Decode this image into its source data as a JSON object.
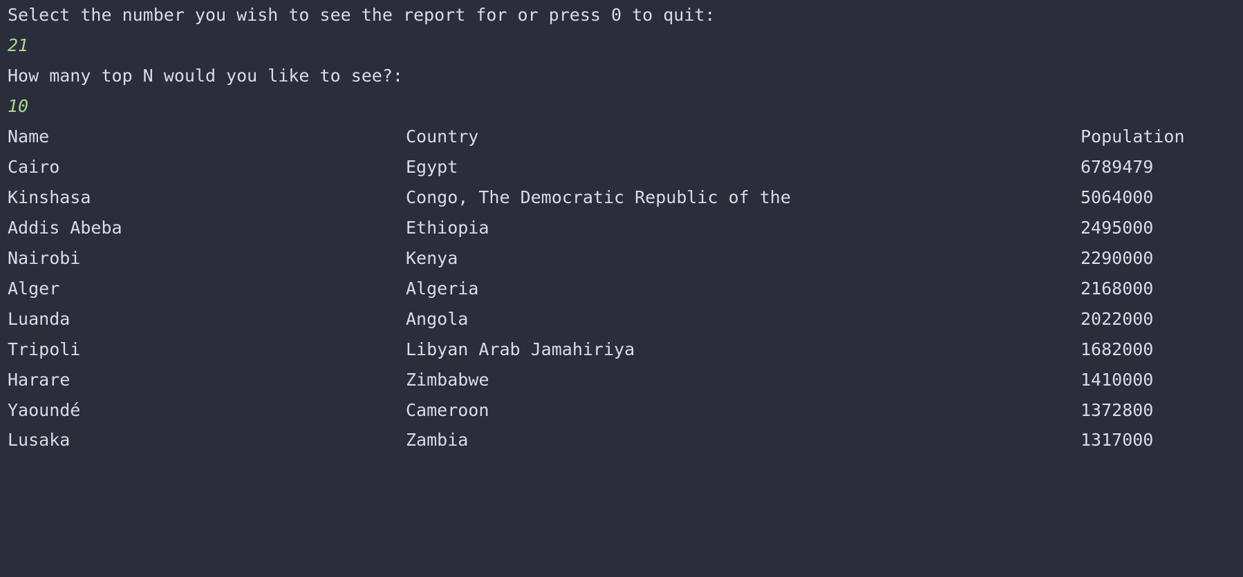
{
  "prompt1": "Select the number you wish to see the report for or press 0 to quit:",
  "answer1": "21",
  "prompt2": "How many top N would you like to see?:",
  "answer2": "10",
  "table": {
    "headers": {
      "name": "Name",
      "country": "Country",
      "population": "Population"
    },
    "rows": [
      {
        "name": "Cairo",
        "country": "Egypt",
        "population": "6789479"
      },
      {
        "name": "Kinshasa",
        "country": "Congo, The Democratic Republic of the",
        "population": "5064000"
      },
      {
        "name": "Addis Abeba",
        "country": "Ethiopia",
        "population": "2495000"
      },
      {
        "name": "Nairobi",
        "country": "Kenya",
        "population": "2290000"
      },
      {
        "name": "Alger",
        "country": "Algeria",
        "population": "2168000"
      },
      {
        "name": "Luanda",
        "country": "Angola",
        "population": "2022000"
      },
      {
        "name": "Tripoli",
        "country": "Libyan Arab Jamahiriya",
        "population": "1682000"
      },
      {
        "name": "Harare",
        "country": "Zimbabwe",
        "population": "1410000"
      },
      {
        "name": "Yaoundé",
        "country": "Cameroon",
        "population": "1372800"
      },
      {
        "name": "Lusaka",
        "country": "Zambia",
        "population": "1317000"
      }
    ]
  },
  "colors": {
    "background": "#2b2d3a",
    "text": "#d9dbe6",
    "input_echo": "#a5d98e"
  }
}
